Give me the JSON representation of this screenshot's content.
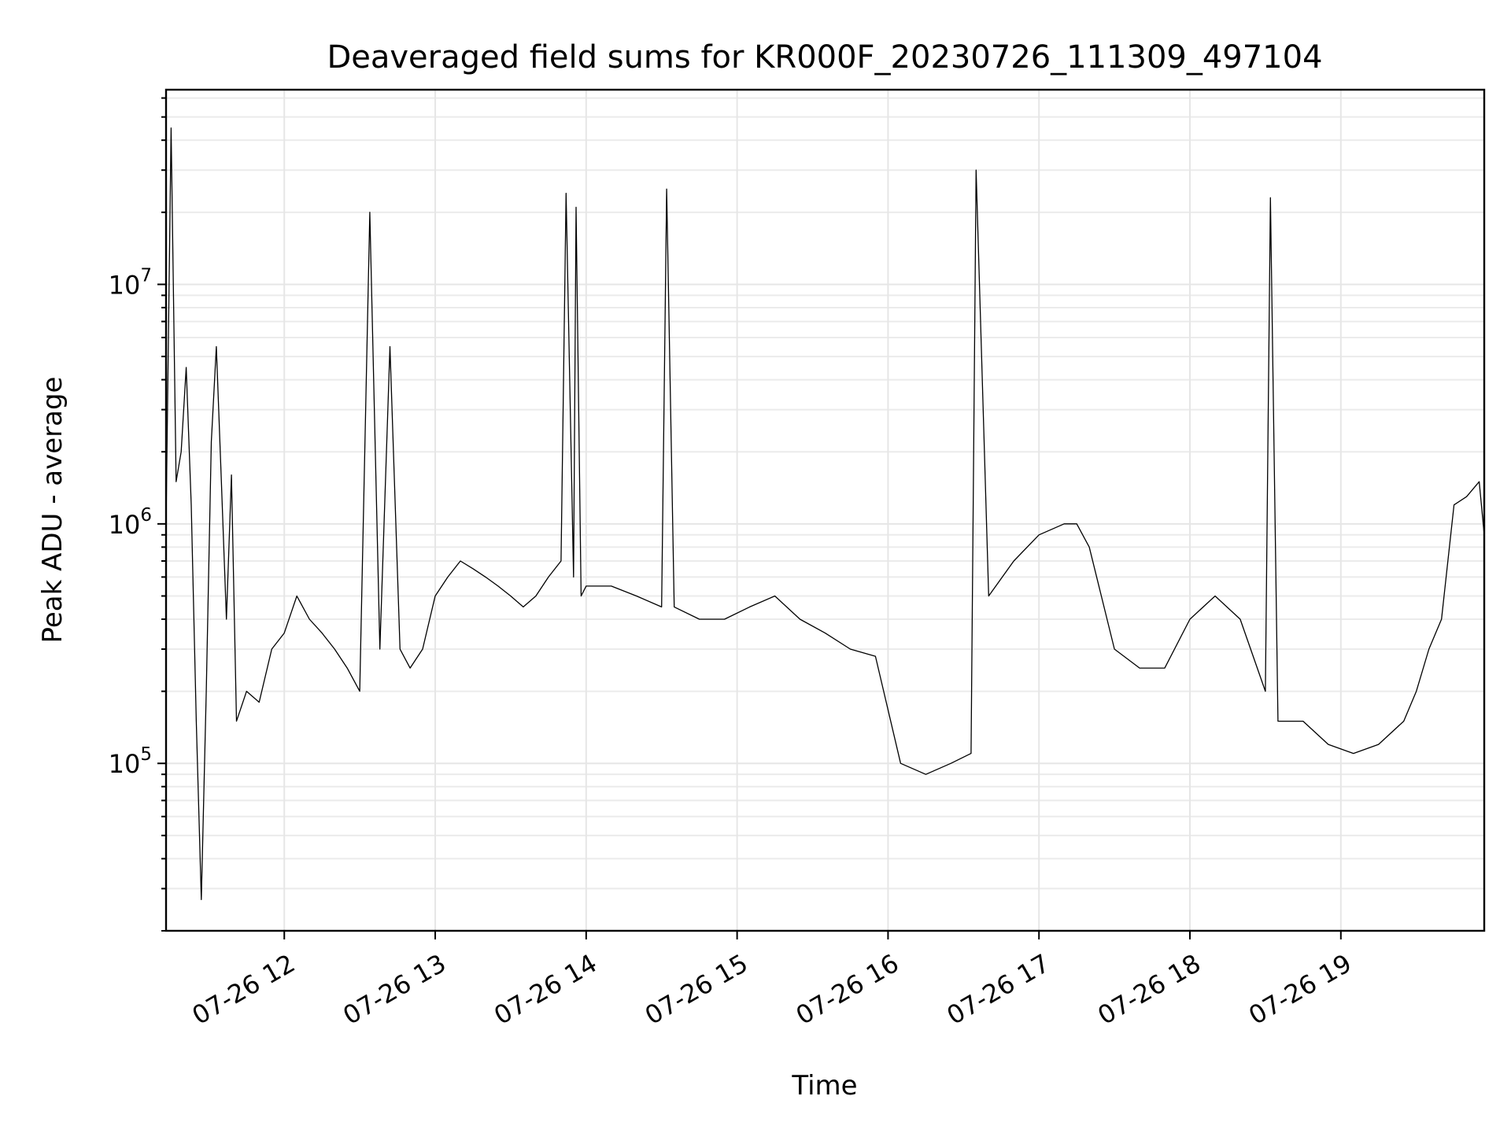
{
  "chart_data": {
    "type": "line",
    "title": "Deaveraged field sums for KR000F_20230726_111309_497104",
    "xlabel": "Time",
    "ylabel": "Peak ADU - average",
    "y_scale": "log",
    "ylim": [
      20000,
      65000000
    ],
    "xlim": [
      "2023-07-26 11:13",
      "2023-07-26 19:57"
    ],
    "grid": true,
    "x_ticks": [
      {
        "value": "2023-07-26 12:00",
        "label": "07-26 12"
      },
      {
        "value": "2023-07-26 13:00",
        "label": "07-26 13"
      },
      {
        "value": "2023-07-26 14:00",
        "label": "07-26 14"
      },
      {
        "value": "2023-07-26 15:00",
        "label": "07-26 15"
      },
      {
        "value": "2023-07-26 16:00",
        "label": "07-26 16"
      },
      {
        "value": "2023-07-26 17:00",
        "label": "07-26 17"
      },
      {
        "value": "2023-07-26 18:00",
        "label": "07-26 18"
      },
      {
        "value": "2023-07-26 19:00",
        "label": "07-26 19"
      }
    ],
    "y_ticks": [
      {
        "value": 100000,
        "base": "10",
        "exp": "5"
      },
      {
        "value": 1000000,
        "base": "10",
        "exp": "6"
      },
      {
        "value": 10000000,
        "base": "10",
        "exp": "7"
      }
    ],
    "line_color": "#000000",
    "series": [
      {
        "x": [
          "2023-07-26 11:13",
          "2023-07-26 11:15",
          "2023-07-26 11:17",
          "2023-07-26 11:19",
          "2023-07-26 11:21",
          "2023-07-26 11:23",
          "2023-07-26 11:25",
          "2023-07-26 11:27",
          "2023-07-26 11:29",
          "2023-07-26 11:31",
          "2023-07-26 11:33",
          "2023-07-26 11:35",
          "2023-07-26 11:37",
          "2023-07-26 11:39",
          "2023-07-26 11:41",
          "2023-07-26 11:45",
          "2023-07-26 11:50",
          "2023-07-26 11:55",
          "2023-07-26 12:00",
          "2023-07-26 12:05",
          "2023-07-26 12:10",
          "2023-07-26 12:15",
          "2023-07-26 12:20",
          "2023-07-26 12:25",
          "2023-07-26 12:30",
          "2023-07-26 12:34",
          "2023-07-26 12:38",
          "2023-07-26 12:42",
          "2023-07-26 12:46",
          "2023-07-26 12:50",
          "2023-07-26 12:55",
          "2023-07-26 13:00",
          "2023-07-26 13:05",
          "2023-07-26 13:10",
          "2023-07-26 13:15",
          "2023-07-26 13:20",
          "2023-07-26 13:25",
          "2023-07-26 13:30",
          "2023-07-26 13:35",
          "2023-07-26 13:40",
          "2023-07-26 13:45",
          "2023-07-26 13:50",
          "2023-07-26 13:52",
          "2023-07-26 13:55",
          "2023-07-26 13:56",
          "2023-07-26 13:58",
          "2023-07-26 14:00",
          "2023-07-26 14:10",
          "2023-07-26 14:20",
          "2023-07-26 14:30",
          "2023-07-26 14:32",
          "2023-07-26 14:35",
          "2023-07-26 14:45",
          "2023-07-26 14:55",
          "2023-07-26 15:05",
          "2023-07-26 15:15",
          "2023-07-26 15:25",
          "2023-07-26 15:35",
          "2023-07-26 15:45",
          "2023-07-26 15:55",
          "2023-07-26 16:05",
          "2023-07-26 16:15",
          "2023-07-26 16:25",
          "2023-07-26 16:33",
          "2023-07-26 16:35",
          "2023-07-26 16:40",
          "2023-07-26 16:50",
          "2023-07-26 17:00",
          "2023-07-26 17:10",
          "2023-07-26 17:15",
          "2023-07-26 17:20",
          "2023-07-26 17:30",
          "2023-07-26 17:40",
          "2023-07-26 17:50",
          "2023-07-26 18:00",
          "2023-07-26 18:10",
          "2023-07-26 18:20",
          "2023-07-26 18:30",
          "2023-07-26 18:32",
          "2023-07-26 18:35",
          "2023-07-26 18:45",
          "2023-07-26 18:55",
          "2023-07-26 19:05",
          "2023-07-26 19:15",
          "2023-07-26 19:25",
          "2023-07-26 19:30",
          "2023-07-26 19:35",
          "2023-07-26 19:40",
          "2023-07-26 19:45",
          "2023-07-26 19:50",
          "2023-07-26 19:55",
          "2023-07-26 19:57"
        ],
        "values": [
          1000000,
          45000000,
          1500000,
          2000000,
          4500000,
          1200000,
          150000,
          27000,
          200000,
          2200000,
          5500000,
          1500000,
          400000,
          1600000,
          150000,
          200000,
          180000,
          300000,
          350000,
          500000,
          400000,
          350000,
          300000,
          250000,
          200000,
          20000000,
          300000,
          5500000,
          300000,
          250000,
          300000,
          500000,
          600000,
          700000,
          650000,
          600000,
          550000,
          500000,
          450000,
          500000,
          600000,
          700000,
          24000000,
          600000,
          21000000,
          500000,
          550000,
          550000,
          500000,
          450000,
          25000000,
          450000,
          400000,
          400000,
          450000,
          500000,
          400000,
          350000,
          300000,
          280000,
          100000,
          90000,
          100000,
          110000,
          30000000,
          500000,
          700000,
          900000,
          1000000,
          1000000,
          800000,
          300000,
          250000,
          250000,
          400000,
          500000,
          400000,
          200000,
          23000000,
          150000,
          150000,
          120000,
          110000,
          120000,
          150000,
          200000,
          300000,
          400000,
          1200000,
          1300000,
          1500000,
          900000
        ]
      }
    ]
  }
}
